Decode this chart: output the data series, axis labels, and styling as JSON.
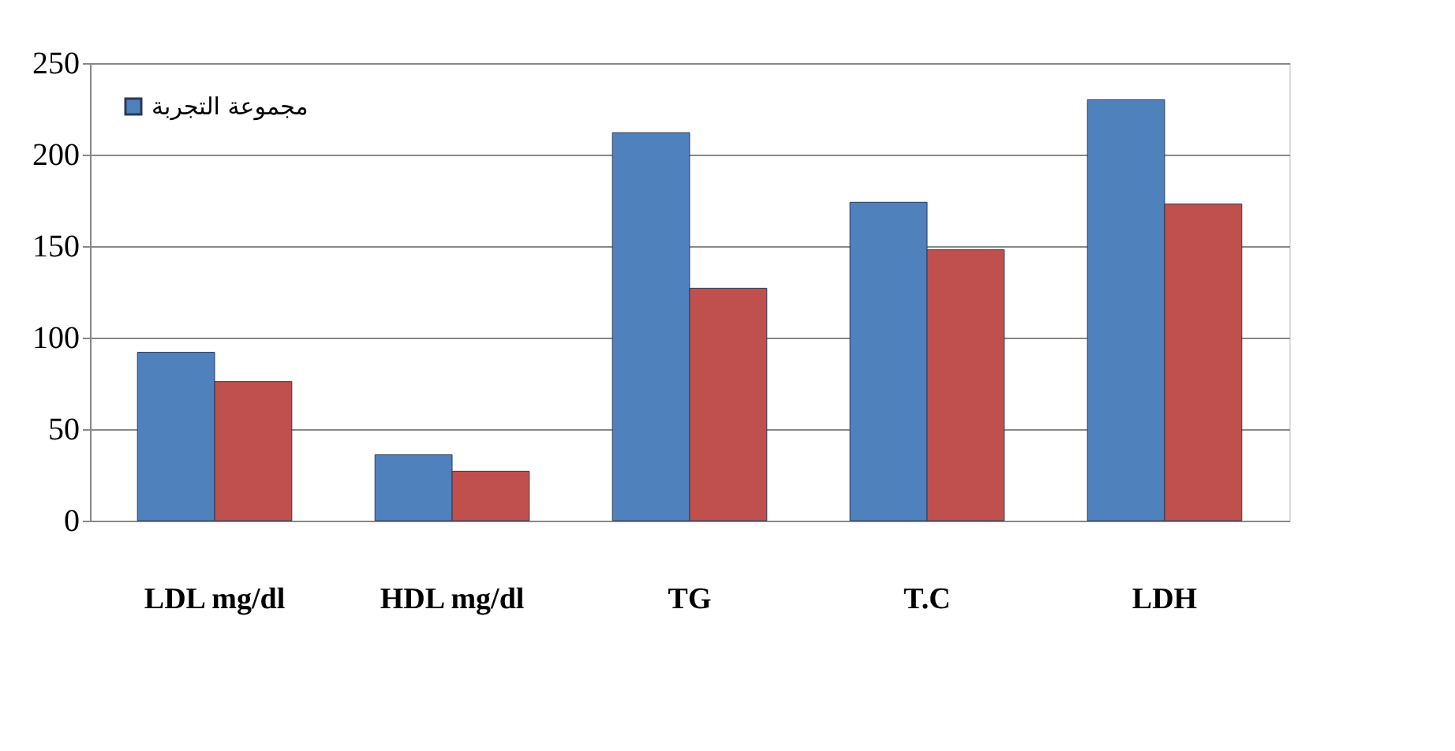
{
  "chart_data": {
    "type": "bar",
    "categories": [
      "LDL mg/dl",
      "HDL mg/dl",
      "TG",
      "T.C",
      "LDH"
    ],
    "series": [
      {
        "name": "مجموعة التجربة",
        "color": "#4f81bd",
        "values": [
          92,
          36,
          212,
          174,
          230
        ]
      },
      {
        "color": "#c0504d",
        "values": [
          76,
          27,
          127,
          148,
          173
        ]
      }
    ],
    "ylim": [
      0,
      250
    ],
    "yticks": [
      0,
      50,
      100,
      150,
      200,
      250
    ],
    "grid": "y",
    "legend": "top left"
  }
}
